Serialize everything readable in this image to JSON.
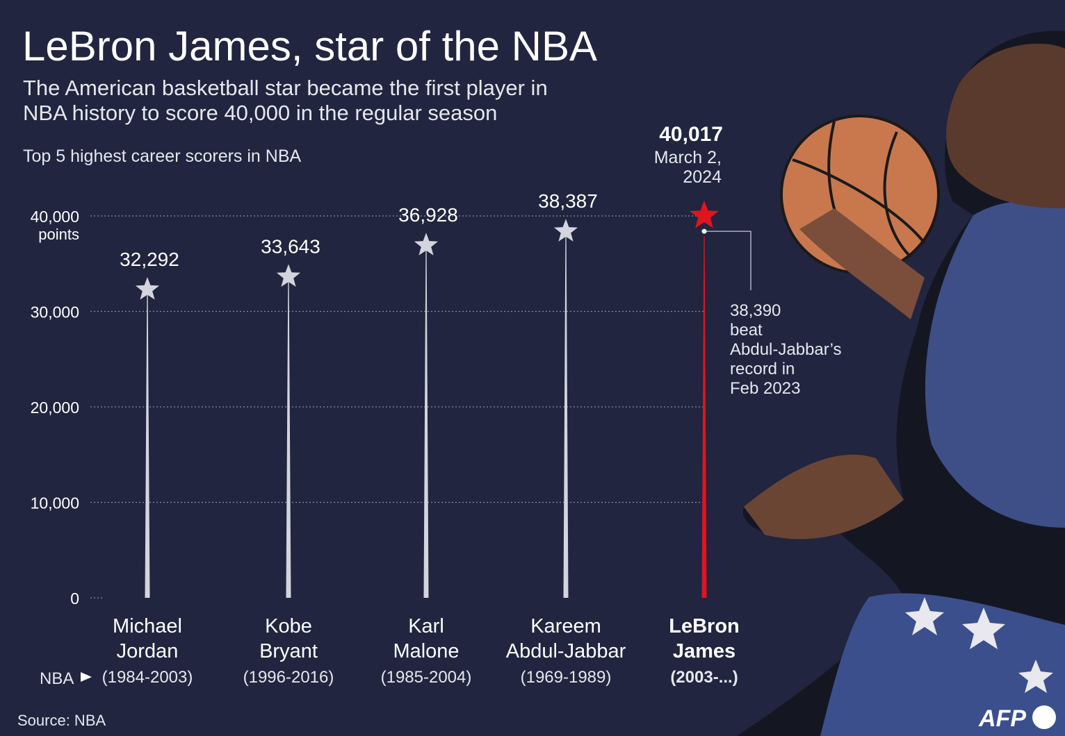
{
  "title": "LeBron James, star of the NBA",
  "subtitle_line1": "The American basketball star became the first player in",
  "subtitle_line2": "NBA history to score 40,000 in the regular season",
  "chart_label": "Top 5  highest career scorers in NBA",
  "source": "Source: NBA",
  "nba_label": "NBA",
  "logo": "AFP",
  "colors": {
    "background": "#21253f",
    "bar": "#d4d4de",
    "highlight": "#e0141e",
    "text": "#ffffff"
  },
  "chart_data": {
    "type": "bar",
    "title": "Top 5  highest career scorers in NBA",
    "ylabel": "points",
    "ylim": [
      0,
      40000
    ],
    "yticks": [
      {
        "value": 0,
        "label": "0"
      },
      {
        "value": 10000,
        "label": "10,000"
      },
      {
        "value": 20000,
        "label": "20,000"
      },
      {
        "value": 30000,
        "label": "30,000"
      },
      {
        "value": 40000,
        "label": "40,000"
      }
    ],
    "categories": [
      {
        "first": "Michael",
        "last": "Jordan",
        "years": "(1984-2003)",
        "value": 32292,
        "label": "32,292",
        "highlight": false
      },
      {
        "first": "Kobe",
        "last": "Bryant",
        "years": "(1996-2016)",
        "value": 33643,
        "label": "33,643",
        "highlight": false
      },
      {
        "first": "Karl",
        "last": "Malone",
        "years": "(1985-2004)",
        "value": 36928,
        "label": "36,928",
        "highlight": false
      },
      {
        "first": "Kareem",
        "last": "Abdul-Jabbar",
        "years": "(1969-1989)",
        "value": 38387,
        "label": "38,387",
        "highlight": false
      },
      {
        "first": "LeBron",
        "last": "James",
        "years": "(2003-...)",
        "value": 40017,
        "label": "40,017",
        "highlight": true
      }
    ],
    "annotations": {
      "record_value": "40,017",
      "record_date_line1": "March 2,",
      "record_date_line2": "2024",
      "milestone_value": 38390,
      "milestone_lines": [
        "38,390",
        "beat",
        "Abdul-Jabbar’s",
        "record in",
        "Feb 2023"
      ]
    }
  }
}
